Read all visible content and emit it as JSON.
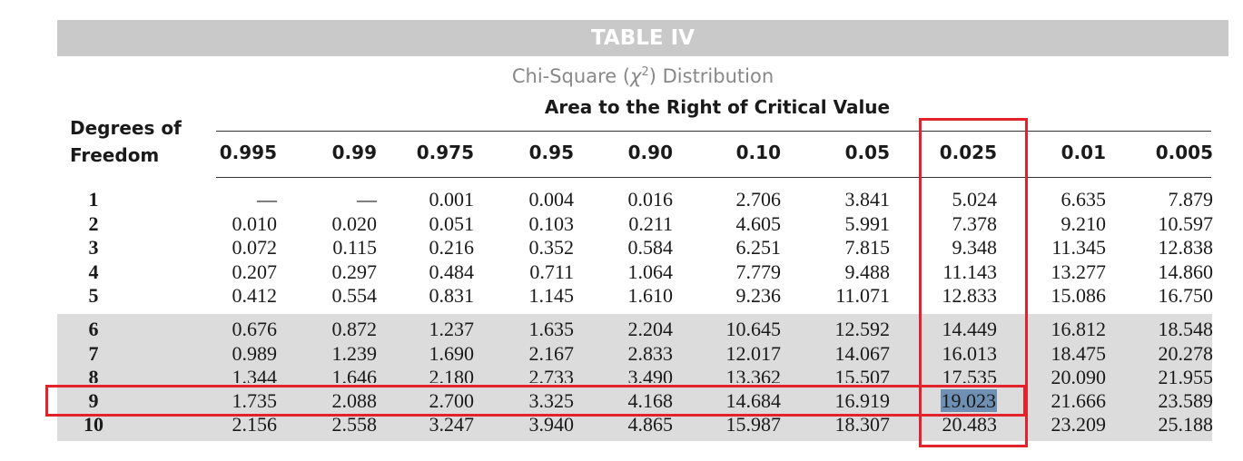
{
  "table": {
    "title": "TABLE IV",
    "subtitle_prefix": "Chi-Square (",
    "subtitle_chi": "χ",
    "subtitle_sup": "2",
    "subtitle_suffix": ") Distribution",
    "area_label": "Area to the Right of Critical Value",
    "dof_label_line1": "Degrees of",
    "dof_label_line2": "Freedom",
    "columns": [
      "0.995",
      "0.99",
      "0.975",
      "0.95",
      "0.90",
      "0.10",
      "0.05",
      "0.025",
      "0.01",
      "0.005"
    ],
    "rows": [
      {
        "df": "1",
        "values": [
          "—",
          "—",
          "0.001",
          "0.004",
          "0.016",
          "2.706",
          "3.841",
          "5.024",
          "6.635",
          "7.879"
        ]
      },
      {
        "df": "2",
        "values": [
          "0.010",
          "0.020",
          "0.051",
          "0.103",
          "0.211",
          "4.605",
          "5.991",
          "7.378",
          "9.210",
          "10.597"
        ]
      },
      {
        "df": "3",
        "values": [
          "0.072",
          "0.115",
          "0.216",
          "0.352",
          "0.584",
          "6.251",
          "7.815",
          "9.348",
          "11.345",
          "12.838"
        ]
      },
      {
        "df": "4",
        "values": [
          "0.207",
          "0.297",
          "0.484",
          "0.711",
          "1.064",
          "7.779",
          "9.488",
          "11.143",
          "13.277",
          "14.860"
        ]
      },
      {
        "df": "5",
        "values": [
          "0.412",
          "0.554",
          "0.831",
          "1.145",
          "1.610",
          "9.236",
          "11.071",
          "12.833",
          "15.086",
          "16.750"
        ]
      },
      {
        "df": "6",
        "values": [
          "0.676",
          "0.872",
          "1.237",
          "1.635",
          "2.204",
          "10.645",
          "12.592",
          "14.449",
          "16.812",
          "18.548"
        ]
      },
      {
        "df": "7",
        "values": [
          "0.989",
          "1.239",
          "1.690",
          "2.167",
          "2.833",
          "12.017",
          "14.067",
          "16.013",
          "18.475",
          "20.278"
        ]
      },
      {
        "df": "8",
        "values": [
          "1.344",
          "1.646",
          "2.180",
          "2.733",
          "3.490",
          "13.362",
          "15.507",
          "17.535",
          "20.090",
          "21.955"
        ]
      },
      {
        "df": "9",
        "values": [
          "1.735",
          "2.088",
          "2.700",
          "3.325",
          "4.168",
          "14.684",
          "16.919",
          "19.023",
          "21.666",
          "23.589"
        ]
      },
      {
        "df": "10",
        "values": [
          "2.156",
          "2.558",
          "3.247",
          "3.940",
          "4.865",
          "15.987",
          "18.307",
          "20.483",
          "23.209",
          "25.188"
        ]
      }
    ],
    "highlighted_value": "19.023"
  },
  "colors": {
    "annotation_red": "#e3232c",
    "selection_blue": "#6f8fb3",
    "banner_gray": "#c9c9c9",
    "band_gray": "#dcdcdc"
  }
}
